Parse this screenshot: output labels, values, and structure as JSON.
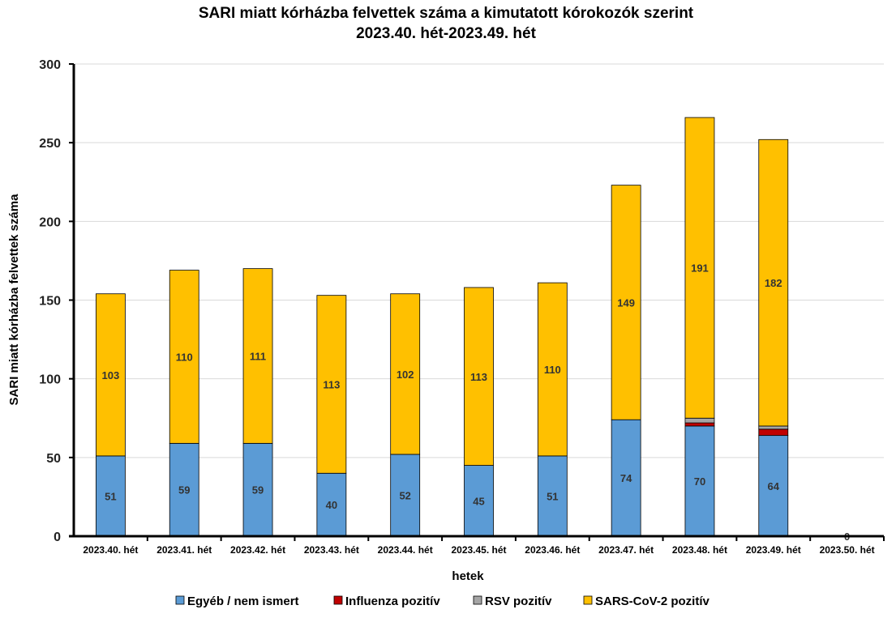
{
  "chart_data": {
    "type": "bar",
    "stacked": true,
    "title": "SARI miatt kórházba felvettek száma a kimutatott kórokozók szerint",
    "subtitle": "2023.40. hét-2023.49. hét",
    "xlabel": "hetek",
    "ylabel": "SARI miatt kórházba felvettek száma",
    "ylim": [
      0,
      300
    ],
    "yticks": [
      "0",
      "50",
      "100",
      "150",
      "200",
      "250",
      "300"
    ],
    "grid": true,
    "legend_position": "bottom",
    "categories": [
      "2023.40. hét",
      "2023.41. hét",
      "2023.42. hét",
      "2023.43. hét",
      "2023.44. hét",
      "2023.45. hét",
      "2023.46. hét",
      "2023.47. hét",
      "2023.48. hét",
      "2023.49. hét",
      "2023.50. hét"
    ],
    "series": [
      {
        "name": "Egyéb / nem ismert",
        "color": "#5b9bd5",
        "values": [
          51,
          59,
          59,
          40,
          52,
          45,
          51,
          74,
          70,
          64,
          0
        ],
        "labels": [
          "51",
          "59",
          "59",
          "40",
          "52",
          "45",
          "51",
          "74",
          "70",
          "64",
          ""
        ]
      },
      {
        "name": "Influenza pozitív",
        "color": "#c00000",
        "values": [
          0,
          0,
          0,
          0,
          0,
          0,
          0,
          0,
          2,
          4,
          0
        ],
        "labels": [
          "",
          "",
          "",
          "",
          "",
          "",
          "",
          "",
          "",
          "",
          ""
        ]
      },
      {
        "name": "RSV pozitív",
        "color": "#a5a5a5",
        "values": [
          0,
          0,
          0,
          0,
          0,
          0,
          0,
          0,
          3,
          2,
          0
        ],
        "labels": [
          "",
          "",
          "",
          "",
          "",
          "",
          "",
          "",
          "",
          "",
          ""
        ]
      },
      {
        "name": "SARS-CoV-2 pozitív",
        "color": "#ffc000",
        "values": [
          103,
          110,
          111,
          113,
          102,
          113,
          110,
          149,
          191,
          182,
          0
        ],
        "labels": [
          "103",
          "110",
          "111",
          "113",
          "102",
          "113",
          "110",
          "149",
          "191",
          "182",
          "0"
        ]
      }
    ]
  }
}
